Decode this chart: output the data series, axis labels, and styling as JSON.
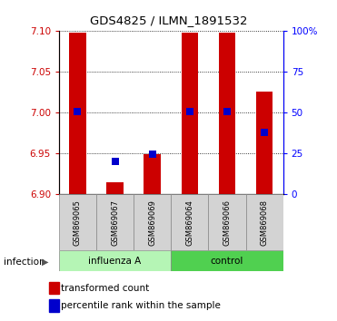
{
  "title": "GDS4825 / ILMN_1891532",
  "samples": [
    "GSM869065",
    "GSM869067",
    "GSM869069",
    "GSM869064",
    "GSM869066",
    "GSM869068"
  ],
  "group_labels": [
    "influenza A",
    "control"
  ],
  "bar_bottom": 6.9,
  "transformed_counts": [
    7.097,
    6.915,
    6.949,
    7.097,
    7.097,
    7.025
  ],
  "percentile_ranks": [
    50.5,
    20.0,
    24.5,
    50.5,
    50.5,
    38.0
  ],
  "ylim_left": [
    6.9,
    7.1
  ],
  "ylim_right": [
    0,
    100
  ],
  "yticks_left": [
    6.9,
    6.95,
    7.0,
    7.05,
    7.1
  ],
  "yticks_right": [
    0,
    25,
    50,
    75,
    100
  ],
  "bar_color": "#CC0000",
  "dot_color": "#0000CC",
  "bar_width": 0.45,
  "dot_size": 30,
  "legend_red_label": "transformed count",
  "legend_blue_label": "percentile rank within the sample",
  "infection_label": "infection",
  "influenza_color": "#b5f5b5",
  "control_color": "#50d050",
  "sample_box_color": "#d3d3d3"
}
